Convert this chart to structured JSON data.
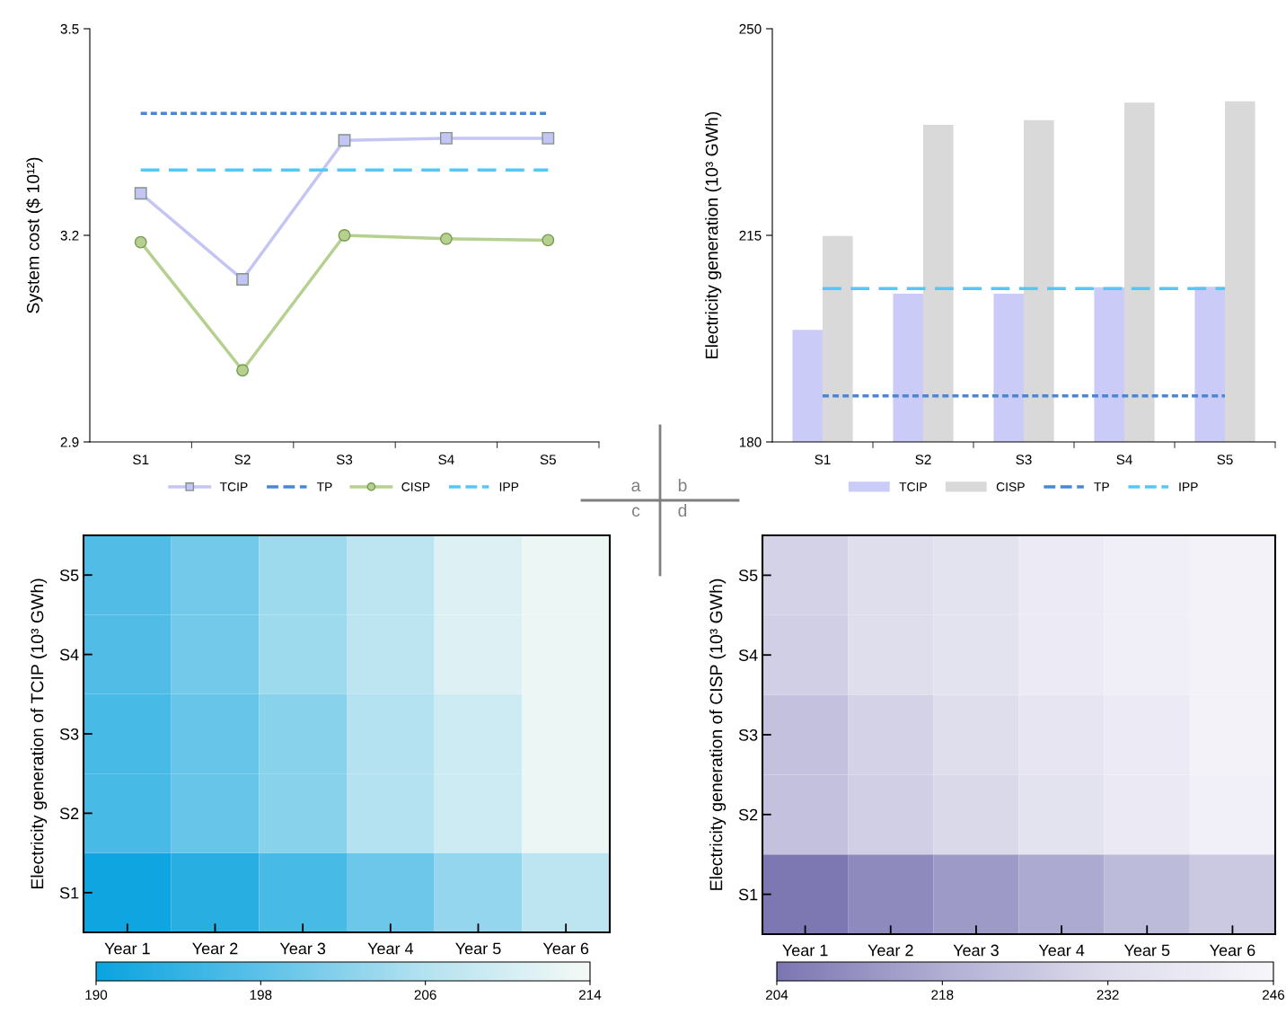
{
  "chart_data": [
    {
      "type": "line",
      "categories": [
        "S1",
        "S2",
        "S3",
        "S4",
        "S5"
      ],
      "ylabel": "System cost ($ 10¹²)",
      "ylim": [
        2.9,
        3.5
      ],
      "yticks": [
        2.9,
        3.2,
        3.5
      ],
      "grid": false,
      "legend": "bottom",
      "annotations": [
        "a"
      ],
      "series": [
        {
          "name": "TCIP",
          "color": "#c5c5f5",
          "marker": "square",
          "line_style": "solid",
          "values": [
            3.261,
            3.136,
            3.338,
            3.341,
            3.341
          ]
        },
        {
          "name": "TP",
          "color": "#4a86d6",
          "marker": "none",
          "line_style": "dotted",
          "values": [
            3.377,
            3.377,
            3.377,
            3.377,
            3.377
          ]
        },
        {
          "name": "CISP",
          "color": "#b5d08f",
          "marker": "circle",
          "line_style": "solid",
          "values": [
            3.19,
            3.004,
            3.2,
            3.195,
            3.193
          ]
        },
        {
          "name": "IPP",
          "color": "#56c7f5",
          "marker": "none",
          "line_style": "dashed",
          "values": [
            3.295,
            3.295,
            3.295,
            3.295,
            3.295
          ]
        }
      ]
    },
    {
      "type": "bar",
      "categories": [
        "S1",
        "S2",
        "S3",
        "S4",
        "S5"
      ],
      "ylabel": "Electricity generation (10³ GWh)",
      "ylim": [
        180,
        250
      ],
      "yticks": [
        180,
        215,
        250
      ],
      "grid": false,
      "legend": "bottom",
      "annotations": [
        "b"
      ],
      "series": [
        {
          "name": "TCIP",
          "color": "#cbcbf8",
          "type": "bar",
          "values": [
            199.0,
            205.1,
            205.1,
            206.2,
            206.3
          ]
        },
        {
          "name": "CISP",
          "color": "#d9d9d9",
          "type": "bar",
          "values": [
            214.9,
            233.7,
            234.5,
            237.5,
            237.7
          ]
        },
        {
          "name": "TP",
          "color": "#4a86d6",
          "type": "line",
          "line_style": "dotted",
          "values": [
            187.8,
            187.8,
            187.8,
            187.8,
            187.8
          ]
        },
        {
          "name": "IPP",
          "color": "#56c7f5",
          "type": "line",
          "line_style": "dashed",
          "values": [
            206.0,
            206.0,
            206.0,
            206.0,
            206.0
          ]
        }
      ]
    },
    {
      "type": "heatmap",
      "categories": [
        "Year 1",
        "Year 2",
        "Year 3",
        "Year 4",
        "Year 5",
        "Year 6"
      ],
      "y_categories": [
        "S5",
        "S4",
        "S3",
        "S2",
        "S1"
      ],
      "ylabel": "Electricity generation of TCIP (10³ GWh)",
      "clim": [
        190,
        214
      ],
      "cticks": [
        190,
        198,
        206,
        214
      ],
      "annotations": [
        "c"
      ],
      "cells": [
        [
          197,
          200,
          204,
          207,
          211,
          213
        ],
        [
          197,
          200,
          204,
          207,
          211,
          213
        ],
        [
          196,
          199,
          202,
          206,
          209,
          213
        ],
        [
          196,
          199,
          202,
          206,
          209,
          213
        ],
        [
          190.5,
          193,
          196,
          199.5,
          203,
          207
        ]
      ]
    },
    {
      "type": "heatmap",
      "categories": [
        "Year 1",
        "Year 2",
        "Year 3",
        "Year 4",
        "Year 5",
        "Year 6"
      ],
      "y_categories": [
        "S5",
        "S4",
        "S3",
        "S2",
        "S1"
      ],
      "ylabel": "Electricity generation of CISP (10³ GWh)",
      "clim": [
        204,
        246
      ],
      "cticks": [
        204,
        218,
        232,
        246
      ],
      "annotations": [
        "d"
      ],
      "cells": [
        [
          229,
          233,
          235,
          240,
          242,
          244
        ],
        [
          228,
          233,
          235,
          240,
          242,
          244
        ],
        [
          224,
          229,
          233,
          237,
          240,
          244
        ],
        [
          224,
          228,
          231,
          235,
          239,
          243
        ],
        [
          204.5,
          209,
          213,
          217,
          222,
          226
        ]
      ]
    }
  ]
}
